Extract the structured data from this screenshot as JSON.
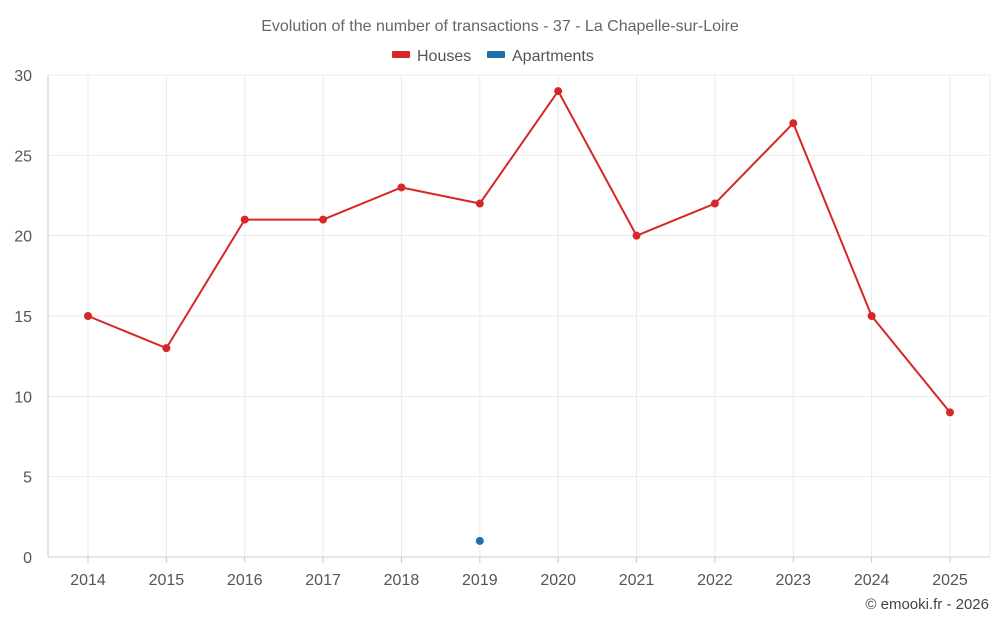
{
  "chart_data": {
    "type": "line",
    "title": "Evolution of the number of transactions - 37 - La Chapelle-sur-Loire",
    "categories": [
      "2014",
      "2015",
      "2016",
      "2017",
      "2018",
      "2019",
      "2020",
      "2021",
      "2022",
      "2023",
      "2024",
      "2025"
    ],
    "series": [
      {
        "name": "Houses",
        "color": "#d62728",
        "values": [
          15,
          13,
          21,
          21,
          23,
          22,
          29,
          20,
          22,
          27,
          15,
          9
        ]
      },
      {
        "name": "Apartments",
        "color": "#1f6fa8",
        "values": [
          null,
          null,
          null,
          null,
          null,
          1,
          null,
          null,
          null,
          null,
          null,
          null
        ]
      }
    ],
    "ylim": [
      0,
      30
    ],
    "yticks": [
      "0",
      "5",
      "10",
      "15",
      "20",
      "25",
      "30"
    ],
    "xlabel": "",
    "ylabel": "",
    "legend_position": "top-center",
    "grid": true
  },
  "credit": "© emooki.fr - 2026"
}
